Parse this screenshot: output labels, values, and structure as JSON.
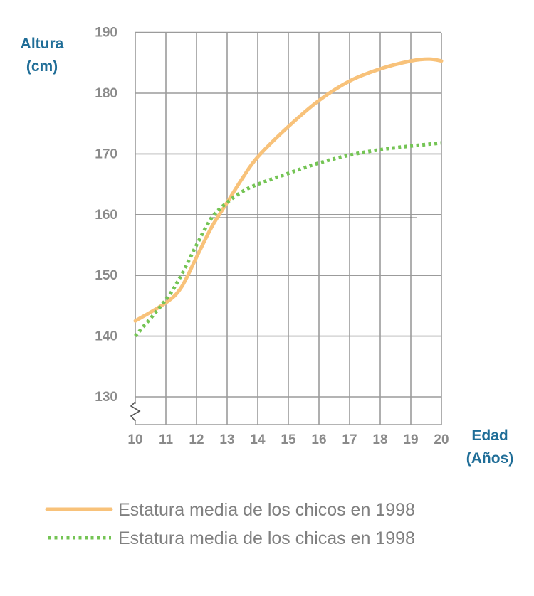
{
  "chart_data": {
    "type": "line",
    "title": "",
    "ylabel": [
      "Altura",
      "(cm)"
    ],
    "xlabel": [
      "Edad",
      "(Años)"
    ],
    "x_ticks": [
      10,
      11,
      12,
      13,
      14,
      15,
      16,
      17,
      18,
      19,
      20
    ],
    "y_ticks": [
      130,
      140,
      150,
      160,
      170,
      180,
      190
    ],
    "xlim": [
      10,
      20
    ],
    "ylim": [
      130,
      190
    ],
    "y_axis_break": true,
    "grid": true,
    "reference_line": {
      "y": 159.5,
      "x_start": 12.4,
      "x_end": 19.2
    },
    "legend_position": "bottom",
    "series": [
      {
        "name": "Estatura media de los chicos en 1998",
        "color": "#f8c27a",
        "style": "solid",
        "points": [
          [
            10,
            142.5
          ],
          [
            11,
            145.5
          ],
          [
            11.5,
            148
          ],
          [
            12,
            153
          ],
          [
            12.5,
            158
          ],
          [
            13,
            162
          ],
          [
            13.5,
            166
          ],
          [
            14,
            169.5
          ],
          [
            15,
            174.5
          ],
          [
            16,
            178.8
          ],
          [
            17,
            182
          ],
          [
            18,
            184
          ],
          [
            19,
            185.3
          ],
          [
            19.6,
            185.6
          ],
          [
            20,
            185.3
          ]
        ]
      },
      {
        "name": "Estatura media de los chicas en 1998",
        "color": "#74c454",
        "style": "dotted",
        "points": [
          [
            10,
            140
          ],
          [
            11,
            146
          ],
          [
            11.5,
            150
          ],
          [
            12,
            155
          ],
          [
            12.5,
            159.5
          ],
          [
            13,
            162
          ],
          [
            13.5,
            163.8
          ],
          [
            14,
            165
          ],
          [
            15,
            166.8
          ],
          [
            16,
            168.5
          ],
          [
            17,
            169.8
          ],
          [
            18,
            170.7
          ],
          [
            19,
            171.3
          ],
          [
            20,
            171.8
          ]
        ]
      }
    ]
  }
}
